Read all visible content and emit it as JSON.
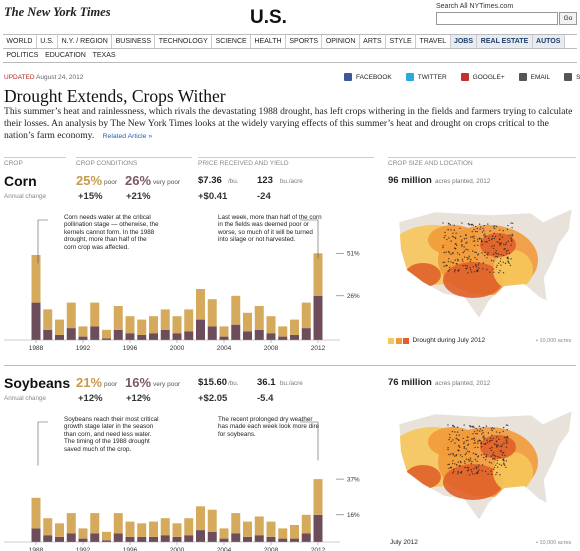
{
  "header": {
    "logo": "The New York Times",
    "section": "U.S.",
    "search_label": "Search All NYTimes.com",
    "search_button": "Go"
  },
  "nav": {
    "primary": [
      "WORLD",
      "U.S.",
      "N.Y. / REGION",
      "BUSINESS",
      "TECHNOLOGY",
      "SCIENCE",
      "HEALTH",
      "SPORTS",
      "OPINION",
      "ARTS",
      "STYLE",
      "TRAVEL",
      "JOBS",
      "REAL ESTATE",
      "AUTOS"
    ],
    "secondary": [
      "POLITICS",
      "EDUCATION",
      "TEXAS"
    ]
  },
  "article": {
    "updated_label": "UPDATED",
    "date": "August 24, 2012",
    "share": [
      "FACEBOOK",
      "TWITTER",
      "GOOGLE+",
      "EMAIL",
      "SHARE"
    ],
    "title": "Drought Extends, Crops Wither",
    "intro": "This summer’s heat and rainlessness, which rivals the devastating 1988 drought, has left crops withering in the fields and farmers trying to calculate their losses. An analysis by The New York Times looks at the widely varying effects of this summer’s heat and drought on crops critical to the nation’s farm economy.",
    "related": "Related Article »"
  },
  "column_headers": [
    "CROP",
    "CROP CONDITIONS",
    "PRICE RECEIVED AND YIELD",
    "CROP SIZE AND LOCATION"
  ],
  "crops": [
    {
      "name": "Corn",
      "poor_value": "25%",
      "poor_label": "poor",
      "very_poor_value": "26%",
      "very_poor_label": "very poor",
      "price": "$7.36",
      "price_unit": "/bu.",
      "yield": "123",
      "yield_unit": "bu./acre",
      "acres": "96 million",
      "acres_label": "acres planted, 2012",
      "change_label": "Annual change",
      "changes": [
        "+15%",
        "+21%",
        "+$0.41",
        "-24"
      ],
      "annotations": [
        "Corn needs water at the critical pollination stage — otherwise, the kernels cannot form. In the 1988 drought, more than half of the corn crop was affected.",
        "Last week, more than half of the corn in the fields was deemed poor or worse, so much of it will be turned into silage or not harvested."
      ],
      "chart": {
        "type": "bar",
        "categories": [
          "1988",
          null,
          null,
          null,
          "1992",
          null,
          null,
          null,
          "1996",
          null,
          null,
          null,
          "2000",
          null,
          null,
          null,
          "2004",
          null,
          null,
          null,
          "2008",
          null,
          null,
          null,
          "2012"
        ],
        "series": [
          {
            "color": "#6d4c5b",
            "values": [
              22,
              6,
              3,
              7,
              2,
              8,
              1,
              6,
              4,
              3,
              4,
              6,
              4,
              5,
              12,
              8,
              2,
              9,
              5,
              6,
              4,
              2,
              3,
              7,
              26
            ]
          },
          {
            "color": "#d6aa5c",
            "values": [
              28,
              12,
              9,
              15,
              6,
              14,
              5,
              14,
              10,
              9,
              10,
              12,
              10,
              13,
              18,
              16,
              6,
              17,
              11,
              14,
              10,
              6,
              9,
              15,
              25
            ]
          }
        ],
        "ylim": [
          0,
          55
        ],
        "yticks": [
          {
            "value": 51,
            "label": "51%"
          },
          {
            "value": 26,
            "label": "26%"
          }
        ]
      },
      "map_legend": "Drought during July 2012",
      "map_note": "• 10,000 acres"
    },
    {
      "name": "Soybeans",
      "poor_value": "21%",
      "poor_label": "poor",
      "very_poor_value": "16%",
      "very_poor_label": "very poor",
      "price": "$15.60",
      "price_unit": "/bu.",
      "yield": "36.1",
      "yield_unit": "bu./acre",
      "acres": "76 million",
      "acres_label": "acres planted, 2012",
      "change_label": "Annual change",
      "changes": [
        "+12%",
        "+12%",
        "+$2.05",
        "-5.4"
      ],
      "annotations": [
        "Soybeans reach their most critical growth stage later in the season than corn, and need less water. The timing of the 1988 drought saved much of the crop.",
        "The recent prolonged dry weather has made each week look more dire for soybeans."
      ],
      "chart": {
        "type": "bar",
        "categories": [
          "1988",
          null,
          null,
          null,
          "1992",
          null,
          null,
          null,
          "1996",
          null,
          null,
          null,
          "2000",
          null,
          null,
          null,
          "2004",
          null,
          null,
          null,
          "2008",
          null,
          null,
          null,
          "2012"
        ],
        "series": [
          {
            "color": "#6d4c5b",
            "values": [
              8,
              4,
              3,
              5,
              2,
              5,
              1,
              5,
              3,
              3,
              3,
              4,
              3,
              4,
              7,
              6,
              2,
              5,
              3,
              4,
              3,
              2,
              2,
              5,
              16
            ]
          },
          {
            "color": "#d6aa5c",
            "values": [
              18,
              10,
              8,
              12,
              6,
              12,
              5,
              12,
              9,
              8,
              9,
              10,
              8,
              10,
              14,
              13,
              6,
              12,
              9,
              11,
              9,
              6,
              8,
              11,
              21
            ]
          }
        ],
        "ylim": [
          0,
          55
        ],
        "yticks": [
          {
            "value": 37,
            "label": "37%"
          },
          {
            "value": 16,
            "label": "16%"
          }
        ]
      },
      "map_legend": "July 2012",
      "map_note": "• 10,000 acres"
    }
  ]
}
